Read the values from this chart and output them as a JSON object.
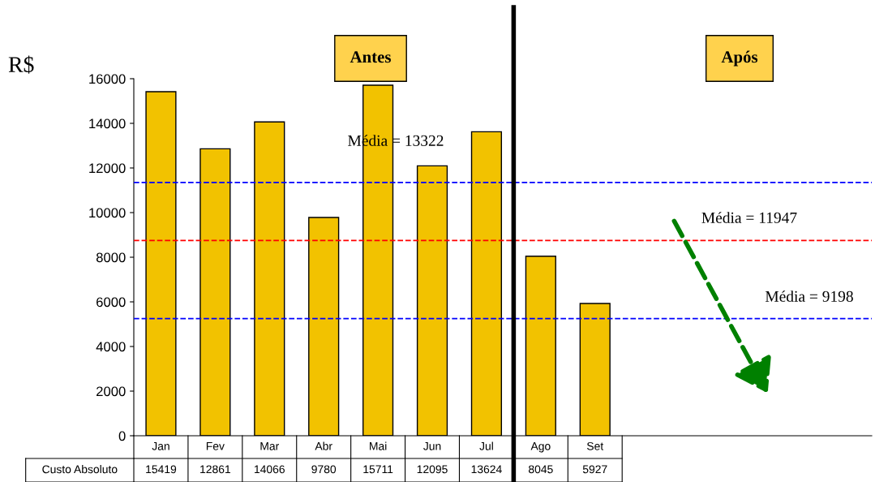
{
  "chart_data": {
    "type": "bar",
    "ylabel": "R$",
    "categories": [
      "Jan",
      "Fev",
      "Mar",
      "Abr",
      "Mai",
      "Jun",
      "Jul",
      "Ago",
      "Set"
    ],
    "series": [
      {
        "name": "Custo Absoluto",
        "color": "#f2c200",
        "values": [
          15419,
          12861,
          14066,
          9780,
          15711,
          12095,
          13624,
          8045,
          5927
        ]
      }
    ],
    "ylim": [
      0,
      16000
    ],
    "yticks": [
      0,
      2000,
      4000,
      6000,
      8000,
      10000,
      12000,
      14000,
      16000
    ],
    "grid": false,
    "legend": "bottom left",
    "data_labels": true,
    "ref_lines": [
      {
        "axis": "y",
        "value": 11350,
        "color": "#0000ff",
        "line_style": "dashed"
      },
      {
        "axis": "y",
        "value": 8750,
        "color": "#ff0000",
        "line_style": "dashed"
      },
      {
        "axis": "y",
        "value": 5250,
        "color": "#0000ff",
        "line_style": "dashed"
      }
    ],
    "annotations": [
      "Antes",
      "Após",
      "Média = 13322",
      "Média = 11947",
      "Média = 9198"
    ]
  }
}
